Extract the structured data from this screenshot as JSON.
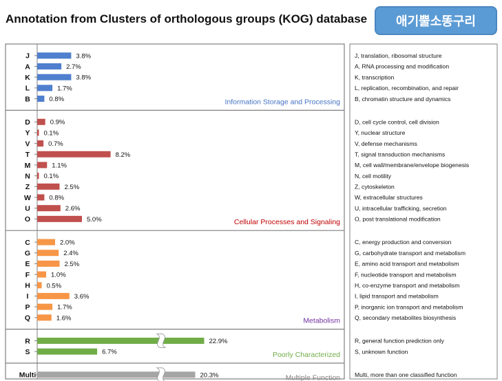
{
  "header": {
    "title": "Annotation from Clusters of orthologous groups (KOG) database",
    "badge": "애기뿔소똥구리"
  },
  "chart_data": {
    "type": "bar",
    "orientation": "horizontal",
    "value_unit": "%",
    "axis_break_over": 10,
    "groups": [
      {
        "name": "Information Storage and Processing",
        "color": "#4f7fce",
        "bars": [
          {
            "code": "J",
            "value": 3.8,
            "label": "3.8%",
            "description": "J, translation, ribosomal structure"
          },
          {
            "code": "A",
            "value": 2.7,
            "label": "2.7%",
            "description": "A, RNA processing and modification"
          },
          {
            "code": "K",
            "value": 3.8,
            "label": "3.8%",
            "description": "K, transcription"
          },
          {
            "code": "L",
            "value": 1.7,
            "label": "1.7%",
            "description": "L, replication, recombination, and repair"
          },
          {
            "code": "B",
            "value": 0.8,
            "label": "0.8%",
            "description": "B, chromatin structure and dynamics"
          }
        ]
      },
      {
        "name": "Cellular Processes and Signaling",
        "color": "#c0504d",
        "bars": [
          {
            "code": "D",
            "value": 0.9,
            "label": "0.9%",
            "description": "D, cell cycle control, cell division"
          },
          {
            "code": "Y",
            "value": 0.1,
            "label": "0.1%",
            "description": "Y, nuclear structure"
          },
          {
            "code": "V",
            "value": 0.7,
            "label": "0.7%",
            "description": "V, defense mechanisms"
          },
          {
            "code": "T",
            "value": 8.2,
            "label": "8.2%",
            "description": "T, signal transduction mechanisms"
          },
          {
            "code": "M",
            "value": 1.1,
            "label": "1.1%",
            "description": "M, cell wall/membrane/envelope biogenesis"
          },
          {
            "code": "N",
            "value": 0.1,
            "label": "0.1%",
            "description": "N, cell motility"
          },
          {
            "code": "Z",
            "value": 2.5,
            "label": "2.5%",
            "description": "Z, cytoskeleton"
          },
          {
            "code": "W",
            "value": 0.8,
            "label": "0.8%",
            "description": "W, extracellular structures"
          },
          {
            "code": "U",
            "value": 2.6,
            "label": "2.6%",
            "description": "U, intracellular trafficking, secretion"
          },
          {
            "code": "O",
            "value": 5.0,
            "label": "5.0%",
            "description": "O, post translational modification"
          }
        ]
      },
      {
        "name": "Metabolism",
        "color": "#f79646",
        "bars": [
          {
            "code": "C",
            "value": 2.0,
            "label": "2.0%",
            "description": "C, energy production and conversion"
          },
          {
            "code": "G",
            "value": 2.4,
            "label": "2.4%",
            "description": "G, carbohydrate transport and metabolism"
          },
          {
            "code": "E",
            "value": 2.5,
            "label": "2.5%",
            "description": "E, amino acid transport and metabolism"
          },
          {
            "code": "F",
            "value": 1.0,
            "label": "1.0%",
            "description": "F, nucleotide transport and metabolism"
          },
          {
            "code": "H",
            "value": 0.5,
            "label": "0.5%",
            "description": "H, co-enzyme transport and metabolism"
          },
          {
            "code": "I",
            "value": 3.6,
            "label": "3.6%",
            "description": "I, lipid transport and metabolism"
          },
          {
            "code": "P",
            "value": 1.7,
            "label": "1.7%",
            "description": "P, inorganic ion transport and metabolism"
          },
          {
            "code": "Q",
            "value": 1.6,
            "label": "1.6%",
            "description": "Q, secondary metabolites biosynthesis"
          }
        ]
      },
      {
        "name": "Poorly Characterized",
        "color": "#70ad47",
        "bars": [
          {
            "code": "R",
            "value": 22.9,
            "label": "22.9%",
            "description": "R, general function prediction only"
          },
          {
            "code": "S",
            "value": 6.7,
            "label": "6.7%",
            "description": "S, unknown function"
          }
        ]
      },
      {
        "name": "Multiple Function",
        "color": "#a5a5a5",
        "bars": [
          {
            "code": "Multi",
            "value": 20.3,
            "label": "20.3%",
            "description": "Multi, more than one classified function"
          }
        ]
      }
    ],
    "group_label_colors": [
      "#4472c4",
      "#c00000",
      "#7030a0",
      "#70ad47",
      "#7f7f7f"
    ]
  }
}
